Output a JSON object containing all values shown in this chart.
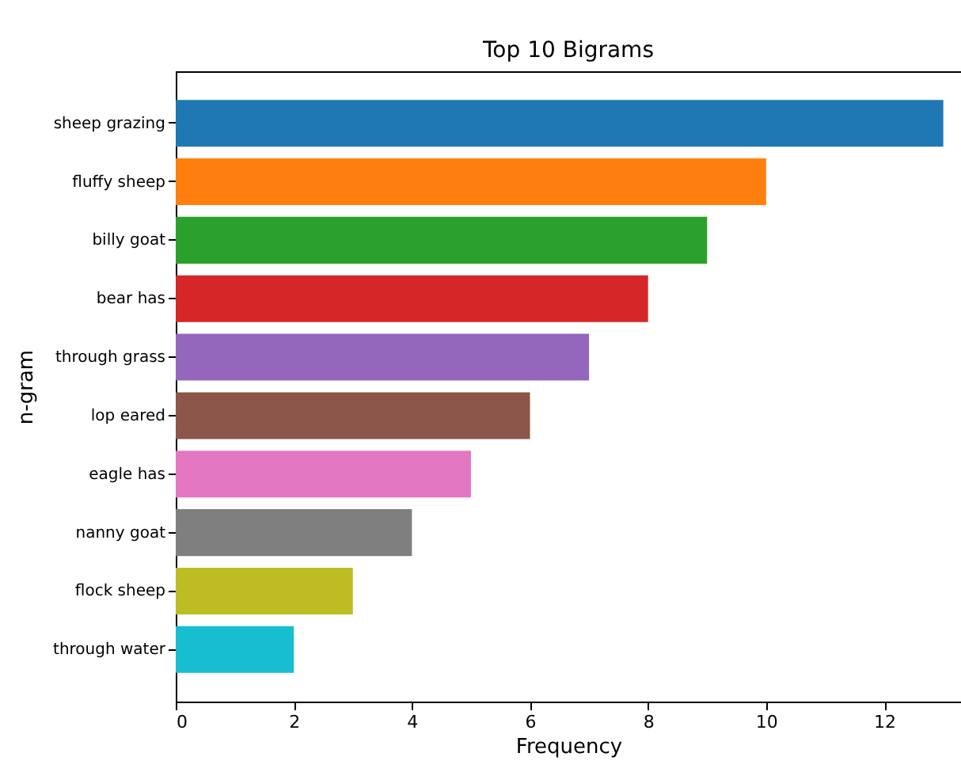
{
  "chart_data": {
    "type": "bar",
    "orientation": "horizontal",
    "title": "Top 10 Bigrams",
    "xlabel": "Frequency",
    "ylabel": "n-gram",
    "categories": [
      "sheep grazing",
      "fluffy sheep",
      "billy goat",
      "bear has",
      "through grass",
      "lop eared",
      "eagle has",
      "nanny goat",
      "flock sheep",
      "through water"
    ],
    "values": [
      13,
      10,
      9,
      8,
      7,
      6,
      5,
      4,
      3,
      2
    ],
    "colors": [
      "#1f77b4",
      "#ff7f0e",
      "#2ca02c",
      "#d62728",
      "#9467bd",
      "#8c564b",
      "#e377c2",
      "#7f7f7f",
      "#bcbd22",
      "#17becf"
    ],
    "xlim": [
      0,
      13.3
    ],
    "xticks": [
      0,
      2,
      4,
      6,
      8,
      10,
      12
    ],
    "grid": false
  }
}
